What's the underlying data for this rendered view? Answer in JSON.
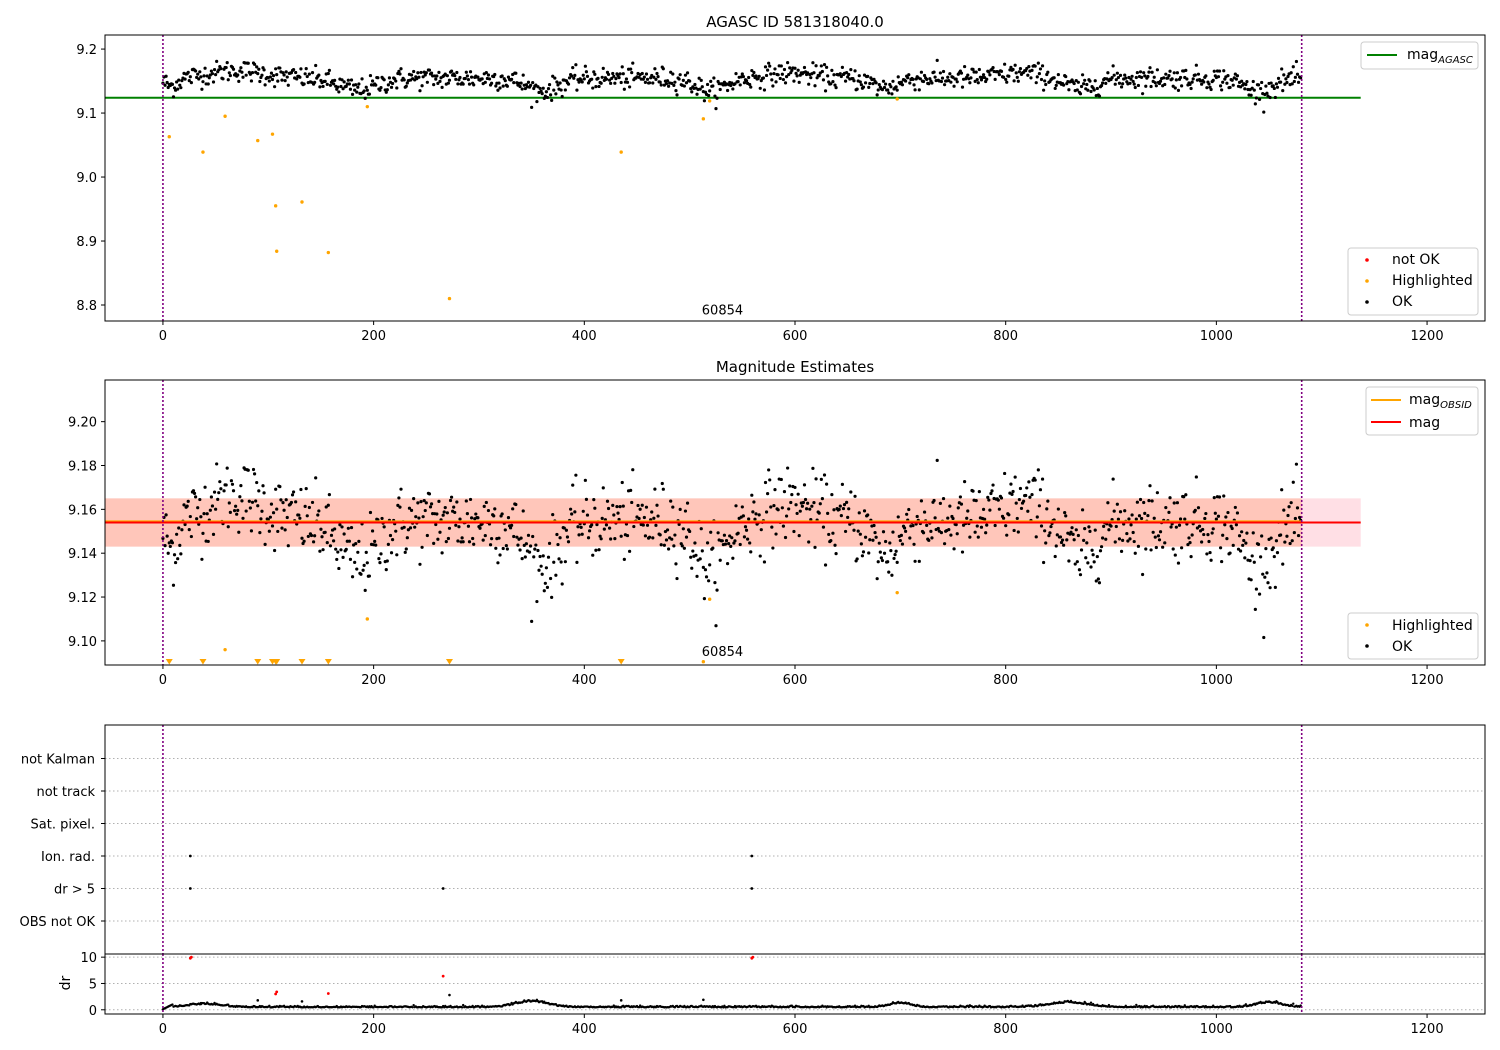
{
  "figure": {
    "background": "#ffffff"
  },
  "colors": {
    "ok": "#000000",
    "highlighted": "#ffa500",
    "not_ok": "#ff0000",
    "mag_agasc": "#008000",
    "mag_obsid": "#ffa500",
    "mag": "#ff0000",
    "vline": "#800080",
    "band_outer": "#ffc0cb",
    "band_inner": "#ffa07a",
    "grid": "#b0b0b0"
  },
  "chart_data": [
    {
      "panel": "agasc",
      "type": "scatter",
      "title": "AGASC ID 581318040.0",
      "xlim": [
        -55,
        1255
      ],
      "ylim": [
        8.775,
        9.222
      ],
      "xticks": [
        "0",
        "200",
        "400",
        "600",
        "800",
        "1000",
        "1200"
      ],
      "yticks": [
        "8.8",
        "8.9",
        "9.0",
        "9.1",
        "9.2"
      ],
      "annotation": {
        "text": "60854",
        "x": 540,
        "y": 8.79
      },
      "vlines_x": [
        0,
        1081
      ],
      "hline": {
        "name": "mag",
        "subscript": "AGASC",
        "y": 9.124,
        "x": [
          -55,
          1137
        ]
      },
      "series_ok": {
        "name": "OK",
        "count": 1081,
        "mean": 9.154,
        "spread": 0.012
      },
      "series_highlighted": {
        "name": "Highlighted",
        "points": [
          [
            6,
            9.063
          ],
          [
            38,
            9.039
          ],
          [
            59,
            9.095
          ],
          [
            90,
            9.057
          ],
          [
            104,
            9.067
          ],
          [
            107,
            8.955
          ],
          [
            108,
            8.884
          ],
          [
            132,
            8.961
          ],
          [
            157,
            8.882
          ],
          [
            194,
            9.11
          ],
          [
            272,
            8.81
          ],
          [
            435,
            9.039
          ],
          [
            513,
            9.091
          ],
          [
            519,
            9.119
          ],
          [
            697,
            9.122
          ]
        ]
      },
      "legend_top": [
        {
          "label": "mag",
          "sub": "AGASC",
          "kind": "line",
          "color": "#008000"
        }
      ],
      "legend_bottom": [
        {
          "label": "not OK",
          "kind": "dot",
          "color": "#ff0000"
        },
        {
          "label": "Highlighted",
          "kind": "dot",
          "color": "#ffa500"
        },
        {
          "label": "OK",
          "kind": "dot",
          "color": "#000000"
        }
      ]
    },
    {
      "panel": "estimates",
      "type": "scatter",
      "title": "Magnitude Estimates",
      "xlim": [
        -55,
        1255
      ],
      "ylim": [
        9.089,
        9.219
      ],
      "xticks": [
        "0",
        "200",
        "400",
        "600",
        "800",
        "1000",
        "1200"
      ],
      "yticks": [
        "9.10",
        "9.12",
        "9.14",
        "9.16",
        "9.18",
        "9.20"
      ],
      "annotation": {
        "text": "60854",
        "x": 540,
        "y": 9.094
      },
      "vlines_x": [
        0,
        1081
      ],
      "bands": [
        {
          "y0": 9.143,
          "y1": 9.165,
          "x": [
            -55,
            1137
          ],
          "color": "#ffc0cb",
          "opacity": 0.5
        },
        {
          "y0": 9.143,
          "y1": 9.165,
          "x": [
            -55,
            1081
          ],
          "color": "#ffa07a",
          "opacity": 0.4
        }
      ],
      "lines": [
        {
          "name": "mag",
          "subscript": "OBSID",
          "y": 9.1545,
          "x": [
            -55,
            1081
          ],
          "color": "#ffa500"
        },
        {
          "name": "mag",
          "y": 9.154,
          "x": [
            -55,
            1137
          ],
          "color": "#ff0000"
        }
      ],
      "series_ok": {
        "name": "OK",
        "count": 1081,
        "mean": 9.154,
        "spread": 0.012
      },
      "series_highlighted": {
        "name": "Highlighted",
        "points": [
          [
            59,
            9.096
          ],
          [
            194,
            9.11
          ],
          [
            519,
            9.119
          ],
          [
            697,
            9.122
          ],
          [
            513,
            9.0905
          ]
        ],
        "below_range_x": [
          6,
          38,
          90,
          104,
          107,
          108,
          132,
          157,
          272,
          435
        ]
      },
      "legend_top": [
        {
          "label": "mag",
          "sub": "OBSID",
          "kind": "line",
          "color": "#ffa500"
        },
        {
          "label": "mag",
          "kind": "line",
          "color": "#ff0000"
        }
      ],
      "legend_bottom": [
        {
          "label": "Highlighted",
          "kind": "dot",
          "color": "#ffa500"
        },
        {
          "label": "OK",
          "kind": "dot",
          "color": "#000000"
        }
      ]
    },
    {
      "panel": "flags",
      "type": "scatter",
      "xlim": [
        -55,
        1255
      ],
      "categories": [
        "OBS not OK",
        "dr > 5",
        "Ion. rad.",
        "Sat. pixel.",
        "not track",
        "not Kalman"
      ],
      "vlines_x": [
        0,
        1081
      ],
      "flag_points": [
        {
          "category": "Ion. rad.",
          "x": [
            26,
            559
          ]
        },
        {
          "category": "dr > 5",
          "x": [
            26,
            266,
            559
          ]
        }
      ]
    },
    {
      "panel": "dr",
      "type": "scatter",
      "ylabel": "dr",
      "xlim": [
        -55,
        1255
      ],
      "ylim": [
        -0.8,
        10.6
      ],
      "xticks": [
        "0",
        "200",
        "400",
        "600",
        "800",
        "1000",
        "1200"
      ],
      "yticks": [
        "0",
        "5",
        "10"
      ],
      "vlines_x": [
        0,
        1081
      ],
      "series_ok": {
        "name": "OK",
        "count": 1081
      },
      "outliers_ok": [
        [
          90,
          1.8
        ],
        [
          132,
          1.6
        ],
        [
          272,
          2.8
        ],
        [
          435,
          1.8
        ],
        [
          513,
          1.9
        ],
        [
          36,
          1.1
        ]
      ],
      "outliers_not_ok": [
        [
          26,
          9.8
        ],
        [
          27,
          10.0
        ],
        [
          107,
          3.0
        ],
        [
          108,
          3.4
        ],
        [
          157,
          3.1
        ],
        [
          266,
          6.4
        ],
        [
          559,
          9.8
        ],
        [
          560,
          10.0
        ]
      ]
    }
  ]
}
